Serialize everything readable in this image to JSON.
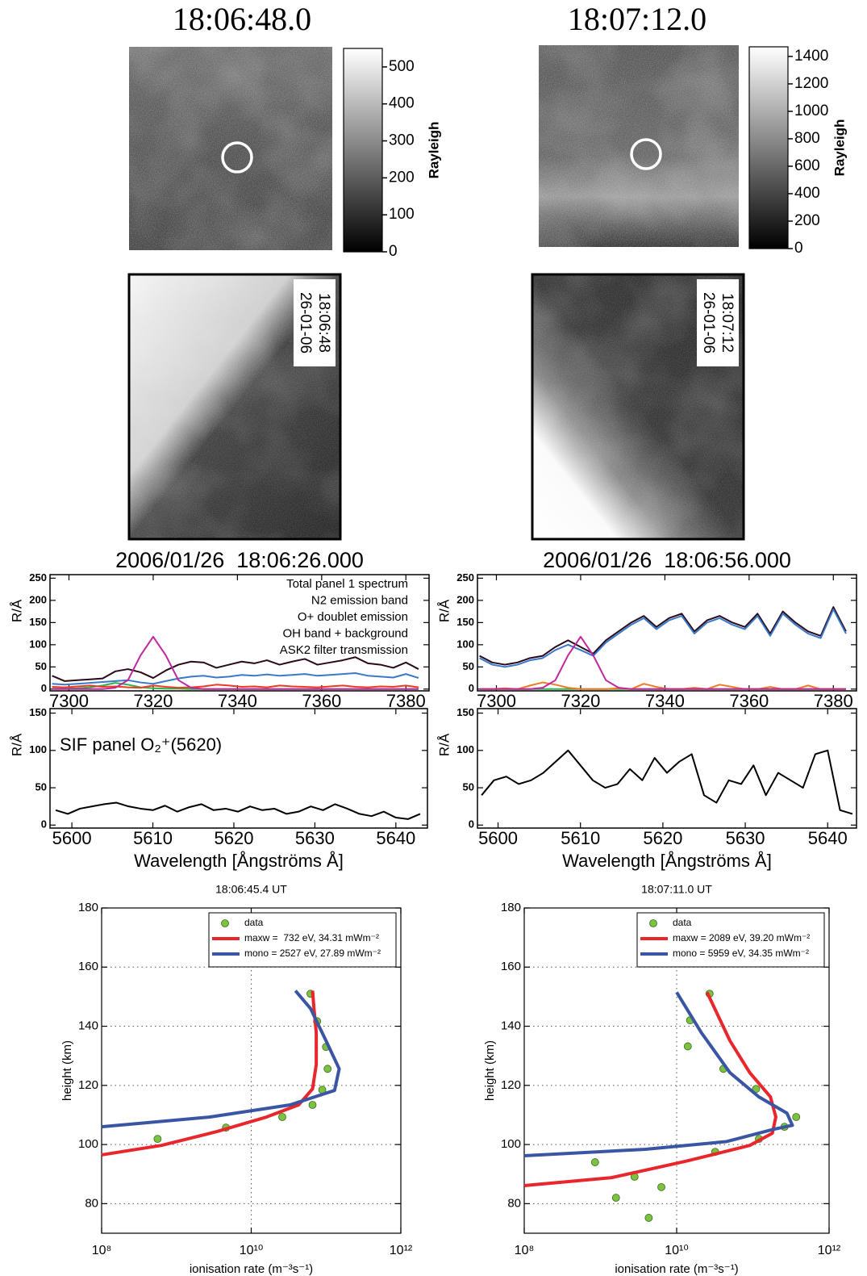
{
  "chart_data": [
    {
      "type": "image",
      "title": "18:06:48.0",
      "label": "Rayleigh",
      "ylim": [
        0,
        550
      ],
      "yticks": [
        0,
        100,
        200,
        300,
        400,
        500
      ],
      "stamp": [
        "26-01-06",
        "18:06:48"
      ]
    },
    {
      "type": "image",
      "title": "18:07:12.0",
      "label": "Rayleigh",
      "ylim": [
        0,
        1470
      ],
      "yticks": [
        0,
        200,
        400,
        600,
        800,
        1000,
        1200,
        1400
      ],
      "stamp": [
        "26-01-06",
        "18:07:12"
      ]
    },
    {
      "type": "line",
      "title": "2006/01/26  18:06:26.000",
      "ylabel": "R/Å",
      "legend": "upper right",
      "x": [
        7296,
        7299,
        7302,
        7305,
        7308,
        7311,
        7314,
        7317,
        7320,
        7323,
        7326,
        7329,
        7332,
        7335,
        7338,
        7341,
        7344,
        7347,
        7350,
        7353,
        7356,
        7359,
        7362,
        7365,
        7368,
        7371,
        7374,
        7377,
        7380,
        7383
      ],
      "xlim": [
        7295.5,
        7385.5
      ],
      "xticks": [
        7300,
        7320,
        7340,
        7360,
        7380
      ],
      "ylim": [
        -4,
        258
      ],
      "yticks": [
        0,
        50,
        100,
        150,
        200,
        250
      ],
      "series": [
        {
          "name": "Total panel 1 spectrum",
          "color": "#2a0a1a",
          "values": [
            30,
            18,
            20,
            22,
            24,
            40,
            45,
            38,
            25,
            42,
            55,
            62,
            60,
            48,
            55,
            62,
            58,
            65,
            55,
            62,
            68,
            55,
            60,
            65,
            72,
            58,
            55,
            48,
            60,
            45
          ]
        },
        {
          "name": "N2 emission band",
          "color": "#3a78c9",
          "values": [
            12,
            10,
            12,
            14,
            16,
            18,
            20,
            15,
            12,
            18,
            24,
            28,
            30,
            26,
            28,
            32,
            30,
            33,
            30,
            32,
            34,
            30,
            32,
            34,
            36,
            30,
            28,
            26,
            34,
            25
          ]
        },
        {
          "name": "O+ doublet emission",
          "color": "#2db34a",
          "values": [
            1,
            1,
            2,
            4,
            8,
            14,
            10,
            4,
            2,
            1,
            1,
            0,
            0,
            0,
            0,
            0,
            0,
            0,
            0,
            0,
            0,
            0,
            0,
            0,
            0,
            0,
            0,
            0,
            0,
            0
          ]
        },
        {
          "name": "OH band + background",
          "color": "#ee3b24",
          "values": [
            5,
            4,
            6,
            8,
            5,
            6,
            4,
            3,
            8,
            5,
            3,
            4,
            6,
            10,
            8,
            5,
            6,
            4,
            8,
            6,
            5,
            4,
            6,
            8,
            5,
            4,
            6,
            5,
            8,
            4
          ]
        },
        {
          "name": "ASK2 filter transmission",
          "color": "#c0269e",
          "values": [
            0,
            0,
            0,
            0,
            0,
            3,
            20,
            76,
            118,
            76,
            20,
            3,
            0,
            0,
            0,
            0,
            0,
            0,
            0,
            0,
            0,
            0,
            0,
            0,
            0,
            0,
            0,
            0,
            0,
            0
          ]
        }
      ]
    },
    {
      "type": "line",
      "annotation": "SIF panel O₂⁺(5620)",
      "xlabel": "Wavelength [Ångströms Å]",
      "ylabel": "R/Å",
      "x": [
        5598,
        5599.5,
        5601,
        5602.5,
        5604,
        5605.5,
        5607,
        5608.5,
        5610,
        5611.5,
        5613,
        5614.5,
        5616,
        5617.5,
        5619,
        5620.5,
        5622,
        5623.5,
        5625,
        5626.5,
        5628,
        5629.5,
        5631,
        5632.5,
        5634,
        5635.5,
        5637,
        5638.5,
        5640,
        5641.5,
        5643
      ],
      "xlim": [
        5597.3,
        5643.9
      ],
      "xticks": [
        5600,
        5610,
        5620,
        5630,
        5640
      ],
      "ylim": [
        -4,
        156
      ],
      "yticks": [
        0,
        50,
        100,
        150
      ],
      "series": [
        {
          "color": "#000000",
          "values": [
            20,
            15,
            22,
            25,
            28,
            30,
            25,
            22,
            20,
            26,
            18,
            24,
            28,
            20,
            22,
            18,
            25,
            20,
            22,
            15,
            18,
            25,
            20,
            28,
            22,
            15,
            12,
            18,
            10,
            8,
            15
          ]
        }
      ]
    },
    {
      "type": "line",
      "title": "2006/01/26  18:06:56.000",
      "ylabel": "R/Å",
      "x": [
        7296,
        7299,
        7302,
        7305,
        7308,
        7311,
        7314,
        7317,
        7320,
        7323,
        7326,
        7329,
        7332,
        7335,
        7338,
        7341,
        7344,
        7347,
        7350,
        7353,
        7356,
        7359,
        7362,
        7365,
        7368,
        7371,
        7374,
        7377,
        7380,
        7383
      ],
      "xlim": [
        7295.5,
        7385.5
      ],
      "xticks": [
        7300,
        7320,
        7340,
        7360,
        7380
      ],
      "ylim": [
        -4,
        258
      ],
      "yticks": [
        0,
        50,
        100,
        150,
        200,
        250
      ],
      "series": [
        {
          "color": "#2a0a1a",
          "values": [
            75,
            60,
            55,
            60,
            70,
            75,
            95,
            110,
            95,
            80,
            110,
            130,
            150,
            165,
            140,
            160,
            170,
            130,
            155,
            165,
            150,
            140,
            170,
            125,
            175,
            150,
            130,
            120,
            185,
            130
          ]
        },
        {
          "color": "#3a78c9",
          "values": [
            70,
            55,
            50,
            55,
            65,
            70,
            88,
            100,
            88,
            75,
            105,
            125,
            145,
            160,
            135,
            155,
            165,
            125,
            150,
            160,
            145,
            135,
            165,
            120,
            170,
            145,
            125,
            115,
            180,
            125
          ]
        },
        {
          "color": "#2db34a",
          "values": [
            0,
            0,
            0,
            0,
            0,
            0,
            0,
            0,
            0,
            0,
            0,
            0,
            0,
            0,
            0,
            0,
            0,
            0,
            0,
            0,
            0,
            0,
            0,
            0,
            0,
            0,
            0,
            0,
            0,
            0
          ]
        },
        {
          "color": "#ee7a24",
          "values": [
            0,
            0,
            2,
            0,
            8,
            15,
            10,
            3,
            0,
            0,
            0,
            2,
            0,
            12,
            5,
            0,
            0,
            3,
            0,
            10,
            5,
            0,
            0,
            5,
            0,
            0,
            8,
            0,
            0,
            0
          ]
        },
        {
          "color": "#c0269e",
          "values": [
            0,
            0,
            0,
            0,
            0,
            3,
            20,
            76,
            118,
            76,
            20,
            3,
            0,
            0,
            0,
            0,
            0,
            0,
            0,
            0,
            0,
            0,
            0,
            0,
            0,
            0,
            0,
            0,
            0,
            0
          ]
        }
      ]
    },
    {
      "type": "line",
      "xlabel": "Wavelength [Ångströms Å]",
      "ylabel": "R/Å",
      "x": [
        5598,
        5599.5,
        5601,
        5602.5,
        5604,
        5605.5,
        5607,
        5608.5,
        5610,
        5611.5,
        5613,
        5614.5,
        5616,
        5617.5,
        5619,
        5620.5,
        5622,
        5623.5,
        5625,
        5626.5,
        5628,
        5629.5,
        5631,
        5632.5,
        5634,
        5635.5,
        5637,
        5638.5,
        5640,
        5641.5,
        5643
      ],
      "xlim": [
        5597.5,
        5643.5
      ],
      "xticks": [
        5600,
        5610,
        5620,
        5630,
        5640
      ],
      "ylim": [
        -4,
        156
      ],
      "yticks": [
        0,
        50,
        100,
        150
      ],
      "series": [
        {
          "color": "#000000",
          "values": [
            40,
            60,
            65,
            55,
            60,
            70,
            85,
            100,
            80,
            60,
            50,
            55,
            75,
            60,
            90,
            70,
            85,
            95,
            40,
            30,
            60,
            55,
            80,
            40,
            70,
            60,
            50,
            95,
            100,
            20,
            15
          ]
        }
      ]
    },
    {
      "type": "profile",
      "title": "18:06:45.4 UT",
      "xlabel": "ionisation rate (m⁻³s⁻¹)",
      "ylabel": "height (km)",
      "xscale": "log",
      "grid": true,
      "legend": "upper right",
      "xlim": [
        100000000.0,
        1000000000000.0
      ],
      "xticks": [
        {
          "value": 100000000.0,
          "label": "10⁸"
        },
        {
          "value": 10000000000.0,
          "label": "10¹⁰"
        },
        {
          "value": 1000000000000.0,
          "label": "10¹²"
        }
      ],
      "ylim": [
        70,
        180
      ],
      "yticks": [
        80,
        100,
        120,
        140,
        160,
        180
      ],
      "series": [
        {
          "name": "data",
          "color": "#7cc242",
          "marker": "circle",
          "x": [
            62000000000.0,
            76000000000.0,
            100000000000.0,
            105000000000.0,
            89000000000.0,
            66000000000.0,
            26000000000.0,
            4600000000.0,
            560000000.0
          ],
          "values": [
            151,
            141.7,
            133,
            125.6,
            118.5,
            113.4,
            109.3,
            105.7,
            101.9
          ]
        },
        {
          "name": "maxw =  732 eV, 34.31 mWm⁻²",
          "color": "#e8262b",
          "x": [
            100000000.0,
            630000000.0,
            3500000000.0,
            16000000000.0,
            43000000000.0,
            66000000000.0,
            74000000000.0,
            74000000000.0,
            69000000000.0,
            66000000000.0
          ],
          "values": [
            96.5,
            99.7,
            104.4,
            109.3,
            113.4,
            118.8,
            127,
            137.9,
            146,
            152
          ]
        },
        {
          "name": "mono = 2527 eV, 27.89 mWm⁻²",
          "color": "#3a55a4",
          "x": [
            100000000.0,
            2800000000.0,
            33000000000.0,
            130000000000.0,
            150000000000.0,
            100000000000.0,
            62000000000.0,
            39000000000.0
          ],
          "values": [
            106,
            109.3,
            113.4,
            118.3,
            125.6,
            135.1,
            146,
            152
          ]
        }
      ]
    },
    {
      "type": "profile",
      "title": "18:07:11.0 UT",
      "xlabel": "ionisation rate (m⁻³s⁻¹)",
      "ylabel": "height (km)",
      "xscale": "log",
      "grid": true,
      "legend": "upper right",
      "xlim": [
        100000000.0,
        1000000000000.0
      ],
      "xticks": [
        {
          "value": 100000000.0,
          "label": "10⁸"
        },
        {
          "value": 10000000000.0,
          "label": "10¹⁰"
        },
        {
          "value": 1000000000000.0,
          "label": "10¹²"
        }
      ],
      "ylim": [
        70,
        180
      ],
      "yticks": [
        80,
        100,
        120,
        140,
        160,
        180
      ],
      "series": [
        {
          "name": "data",
          "color": "#7cc242",
          "marker": "circle",
          "x": [
            27000000000.0,
            15000000000.0,
            14000000000.0,
            41000000000.0,
            110000000000.0,
            370000000000.0,
            260000000000.0,
            120000000000.0,
            32000000000.0,
            850000000.0,
            2800000000.0,
            6300000000.0,
            1600000000.0,
            4300000000.0
          ],
          "values": [
            151,
            142,
            133.2,
            125.6,
            118.8,
            109.3,
            106,
            101.9,
            97.5,
            94,
            89.1,
            85.6,
            82,
            75.2
          ]
        },
        {
          "name": "maxw = 2089 eV, 39.20 mWm⁻²",
          "color": "#e8262b",
          "x": [
            100000000.0,
            1400000000.0,
            13000000000.0,
            91000000000.0,
            180000000000.0,
            200000000000.0,
            170000000000.0,
            91000000000.0,
            50000000000.0,
            25000000000.0
          ],
          "values": [
            86.1,
            88.8,
            94.3,
            99.7,
            103.8,
            109.3,
            116.1,
            124.3,
            135.1,
            151.5
          ]
        },
        {
          "name": "mono = 5959 eV, 34.35 mWm⁻²",
          "color": "#3a55a4",
          "x": [
            100000000.0,
            3900000000.0,
            45000000000.0,
            190000000000.0,
            330000000000.0,
            280000000000.0,
            120000000000.0,
            50000000000.0,
            21000000000.0,
            10000000000.0
          ],
          "values": [
            96.2,
            98.4,
            101,
            105.2,
            106.5,
            110.6,
            116.1,
            124.3,
            137.9,
            151.5
          ]
        }
      ]
    }
  ]
}
